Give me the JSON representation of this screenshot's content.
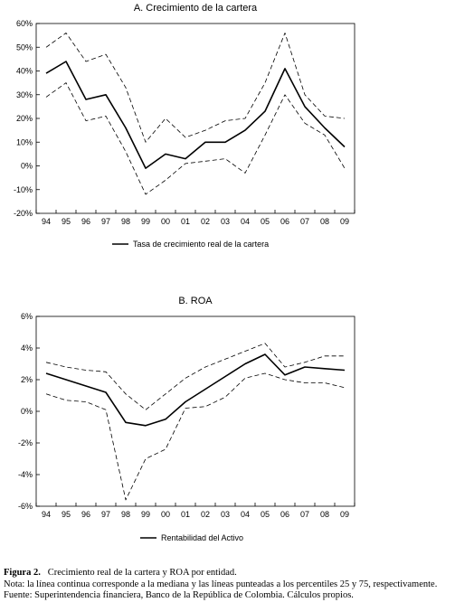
{
  "chart_data": [
    {
      "type": "line",
      "title": "A. Crecimiento de la cartera",
      "categories": [
        "94",
        "95",
        "96",
        "97",
        "98",
        "99",
        "00",
        "01",
        "02",
        "03",
        "04",
        "05",
        "06",
        "07",
        "08",
        "09"
      ],
      "y_ticks": [
        "60%",
        "50%",
        "40%",
        "30%",
        "20%",
        "10%",
        "0%",
        "-10%",
        "-20%"
      ],
      "ylim": [
        -20,
        60
      ],
      "y_unit": "%",
      "grid": false,
      "legend_position": "bottom",
      "legend": "Tasa de crecimiento real de la cartera",
      "series": [
        {
          "name": "Tasa de crecimiento real de la cartera",
          "style": "solid",
          "values": [
            39,
            44,
            28,
            30,
            16,
            -1,
            5,
            3,
            10,
            10,
            15,
            23,
            41,
            25,
            16,
            8
          ]
        },
        {
          "style": "dashed",
          "values": [
            50,
            56,
            44,
            47,
            33,
            10,
            20,
            12,
            15,
            19,
            20,
            35,
            56,
            30,
            21,
            20
          ]
        },
        {
          "style": "dashed",
          "values": [
            29,
            35,
            19,
            21,
            6,
            -12,
            -6,
            1,
            2,
            3,
            -3,
            13,
            30,
            18,
            13,
            -1
          ]
        }
      ]
    },
    {
      "type": "line",
      "title": "B. ROA",
      "categories": [
        "94",
        "95",
        "96",
        "97",
        "98",
        "99",
        "00",
        "01",
        "02",
        "03",
        "04",
        "05",
        "06",
        "07",
        "08",
        "09"
      ],
      "y_ticks": [
        "6%",
        "4%",
        "2%",
        "0%",
        "-2%",
        "-4%",
        "-6%"
      ],
      "ylim": [
        -6,
        6
      ],
      "y_unit": "%",
      "grid": false,
      "legend_position": "bottom",
      "legend": "Rentabilidad del Activo",
      "series": [
        {
          "name": "Rentabilidad del Activo",
          "style": "solid",
          "values": [
            2.4,
            2.0,
            1.6,
            1.2,
            -0.7,
            -0.9,
            -0.5,
            0.6,
            1.4,
            2.2,
            3.0,
            3.6,
            2.3,
            2.8,
            2.7,
            2.6
          ]
        },
        {
          "style": "dashed",
          "values": [
            3.1,
            2.8,
            2.6,
            2.5,
            1.1,
            0.1,
            1.1,
            2.1,
            2.8,
            3.3,
            3.8,
            4.3,
            2.8,
            3.1,
            3.5,
            3.5
          ]
        },
        {
          "style": "dashed",
          "values": [
            1.1,
            0.7,
            0.6,
            0.1,
            -5.6,
            -3.0,
            -2.4,
            0.2,
            0.3,
            0.9,
            2.1,
            2.4,
            2.0,
            1.8,
            1.8,
            1.5
          ]
        }
      ]
    }
  ],
  "caption": {
    "figure_label": "Figura 2.",
    "figure_title": "Crecimiento real de la cartera y ROA por entidad.",
    "note": "Nota: la línea continua corresponde a la mediana y las líneas punteadas a los percentiles 25 y 75, respectivamente.",
    "source": "Fuente: Superintendencia financiera, Banco de la República de Colombia. Cálculos propios."
  }
}
